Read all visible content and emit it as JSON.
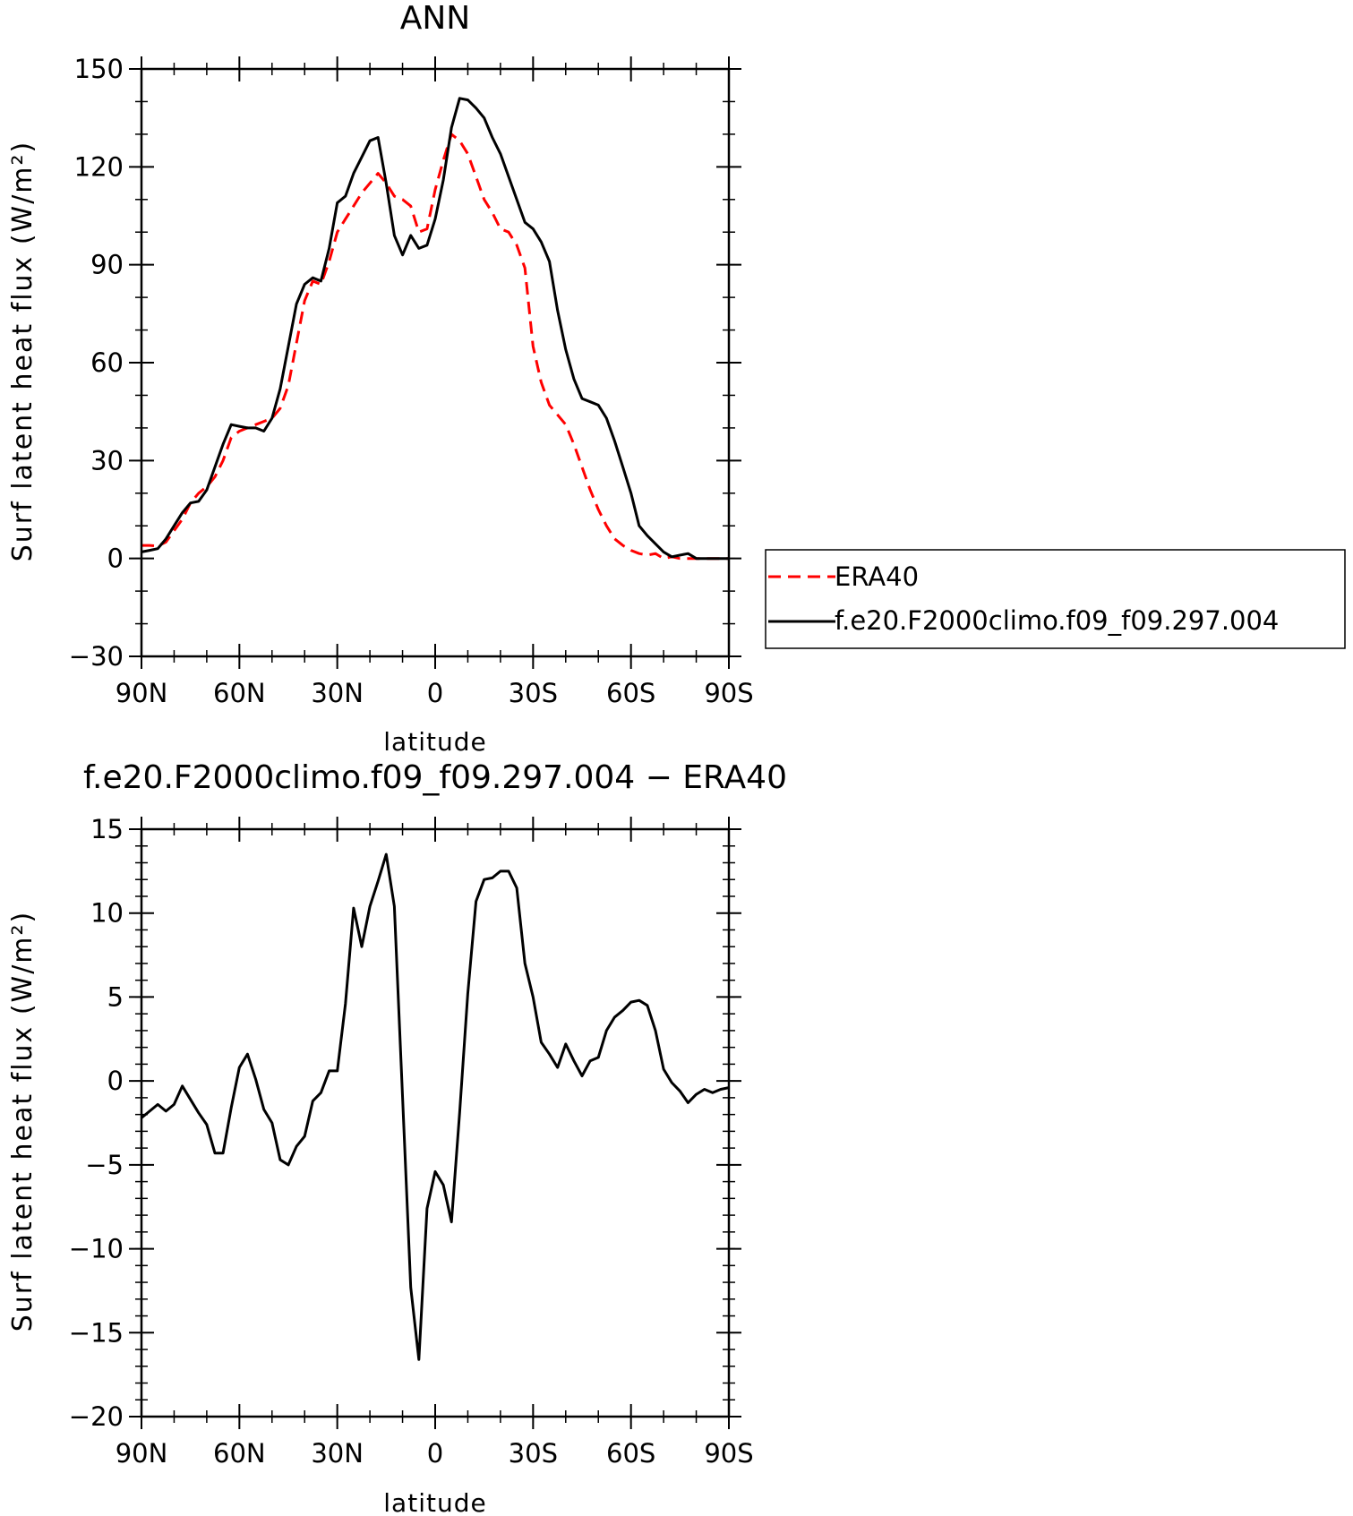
{
  "chart_data": [
    {
      "type": "line",
      "title": "ANN",
      "xlabel": "latitude",
      "ylabel": "Surf latent heat flux (W/m²)",
      "xlim": [
        90,
        -90
      ],
      "ylim": [
        -30,
        150
      ],
      "xtick_labels": [
        "90N",
        "60N",
        "30N",
        "0",
        "30S",
        "60S",
        "90S"
      ],
      "ytick_labels": [
        "−30",
        "0",
        "30",
        "60",
        "90",
        "120",
        "150"
      ],
      "legend_position": "right",
      "x": [
        90,
        87.5,
        85,
        82.5,
        80,
        77.5,
        75,
        72.5,
        70,
        67.5,
        65,
        62.5,
        60,
        57.5,
        55,
        52.5,
        50,
        47.5,
        45,
        42.5,
        40,
        37.5,
        35,
        32.5,
        30,
        27.5,
        25,
        22.5,
        20,
        17.5,
        15,
        12.5,
        10,
        7.5,
        5,
        2.5,
        0,
        -2.5,
        -5,
        -7.5,
        -10,
        -12.5,
        -15,
        -17.5,
        -20,
        -22.5,
        -25,
        -27.5,
        -30,
        -32.5,
        -35,
        -37.5,
        -40,
        -42.5,
        -45,
        -47.5,
        -50,
        -52.5,
        -55,
        -57.5,
        -60,
        -62.5,
        -65,
        -67.5,
        -70,
        -72.5,
        -75,
        -77.5,
        -80,
        -82.5,
        -85,
        -87.5,
        -90
      ],
      "series": [
        {
          "name": "ERA40",
          "color": "#ff0000",
          "dash": "dashed",
          "values": [
            4,
            4,
            3.8,
            5,
            8.5,
            12,
            17,
            20,
            22,
            25,
            30,
            37,
            39,
            40,
            41,
            42,
            43,
            46,
            53,
            66,
            79,
            85,
            84,
            91,
            100,
            104,
            108,
            112,
            115,
            118,
            115,
            111,
            110,
            108,
            100,
            101,
            113,
            122,
            130,
            128,
            124,
            117,
            110,
            106,
            101,
            100,
            96,
            89,
            65,
            54,
            47,
            44,
            41,
            35,
            28,
            21,
            15,
            10,
            6,
            4,
            2.5,
            1.5,
            1,
            1.5,
            0,
            0.5,
            0,
            0,
            0,
            0,
            0,
            0,
            0
          ],
          "values_note": ""
        },
        {
          "name": "f.e20.F2000climo.f09_f09.297.004",
          "color": "#000000",
          "dash": "solid",
          "values": [
            2,
            2.5,
            3,
            6,
            10,
            14,
            17,
            17.5,
            21,
            28,
            35,
            41,
            40.5,
            40,
            40,
            39,
            43,
            52,
            65,
            78,
            84,
            86,
            85,
            95,
            109,
            111,
            118,
            123,
            128,
            129,
            115,
            99,
            93,
            99,
            95,
            96,
            104,
            116,
            132,
            141,
            140.5,
            138,
            135,
            129,
            124,
            117,
            110,
            103,
            101,
            97,
            91,
            76,
            64,
            55,
            49,
            48,
            47,
            43,
            36,
            28,
            20,
            10,
            7,
            4.5,
            2,
            0.5,
            1,
            1.5,
            0,
            0,
            0,
            0,
            0
          ]
        }
      ]
    },
    {
      "type": "line",
      "title": "f.e20.F2000climo.f09_f09.297.004 − ERA40",
      "xlabel": "latitude",
      "ylabel": "Surf latent heat flux (W/m²)",
      "xlim": [
        90,
        -90
      ],
      "ylim": [
        -20,
        15
      ],
      "xtick_labels": [
        "90N",
        "60N",
        "30N",
        "0",
        "30S",
        "60S",
        "90S"
      ],
      "ytick_labels": [
        "−20",
        "−15",
        "−10",
        "−5",
        "0",
        "5",
        "10",
        "15"
      ],
      "x": [
        90,
        87.5,
        85,
        82.5,
        80,
        77.5,
        75,
        72.5,
        70,
        67.5,
        65,
        62.5,
        60,
        57.5,
        55,
        52.5,
        50,
        47.5,
        45,
        42.5,
        40,
        37.5,
        35,
        32.5,
        30,
        27.5,
        25,
        22.5,
        20,
        17.5,
        15,
        12.5,
        10,
        7.5,
        5,
        2.5,
        0,
        -2.5,
        -5,
        -7.5,
        -10,
        -12.5,
        -15,
        -17.5,
        -20,
        -22.5,
        -25,
        -27.5,
        -30,
        -32.5,
        -35,
        -37.5,
        -40,
        -42.5,
        -45,
        -47.5,
        -50,
        -52.5,
        -55,
        -57.5,
        -60,
        -62.5,
        -65,
        -67.5,
        -70,
        -72.5,
        -75,
        -77.5,
        -80,
        -82.5,
        -85,
        -87.5,
        -90
      ],
      "series": [
        {
          "color": "#000000",
          "values": [
            -2.2,
            -1.8,
            -1.4,
            -1.8,
            -1.4,
            -0.3,
            -1.1,
            -1.9,
            -2.6,
            -4.3,
            -4.3,
            -1.6,
            0.8,
            1.6,
            0.1,
            -1.7,
            -2.5,
            -4.7,
            -5,
            -3.9,
            -3.3,
            -1.2,
            -0.7,
            0.6,
            0.6,
            4.6,
            10.3,
            8,
            10.4,
            11.9,
            13.5,
            10.4,
            -1,
            -12.3,
            -16.6,
            -7.6,
            -5.4,
            -6.2,
            -8.4,
            -1.9,
            5.2,
            10.7,
            12,
            12.1,
            12.5,
            12.5,
            11.5,
            7,
            5,
            2.3,
            1.6,
            0.8,
            2.2,
            1.2,
            0.3,
            1.2,
            1.4,
            3,
            3.8,
            4.2,
            4.7,
            4.8,
            4.5,
            3,
            0.7,
            -0.1,
            -0.6,
            -1.3,
            -0.8,
            -0.5,
            -0.7,
            -0.5,
            -0.4
          ]
        }
      ]
    }
  ]
}
